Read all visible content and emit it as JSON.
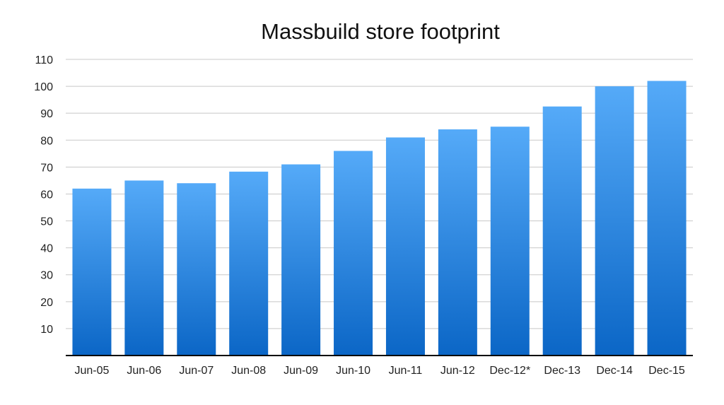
{
  "chart_data": {
    "type": "bar",
    "title": "Massbuild store footprint",
    "xlabel": "",
    "ylabel": "",
    "categories": [
      "Jun-05",
      "Jun-06",
      "Jun-07",
      "Jun-08",
      "Jun-09",
      "Jun-10",
      "Jun-11",
      "Jun-12",
      "Dec-12*",
      "Dec-13",
      "Dec-14",
      "Dec-15"
    ],
    "values": [
      62,
      65,
      64,
      68.3,
      71,
      76,
      81,
      84,
      85,
      92.5,
      100,
      102
    ],
    "ylim": [
      0,
      110
    ],
    "yticks": [
      10,
      20,
      30,
      40,
      50,
      60,
      70,
      80,
      90,
      100,
      110
    ],
    "grid": true,
    "colors": {
      "bar_top": "#55aaf8",
      "bar_bottom": "#0b66c6",
      "grid": "#c8c8c8",
      "axis": "#000000"
    }
  }
}
